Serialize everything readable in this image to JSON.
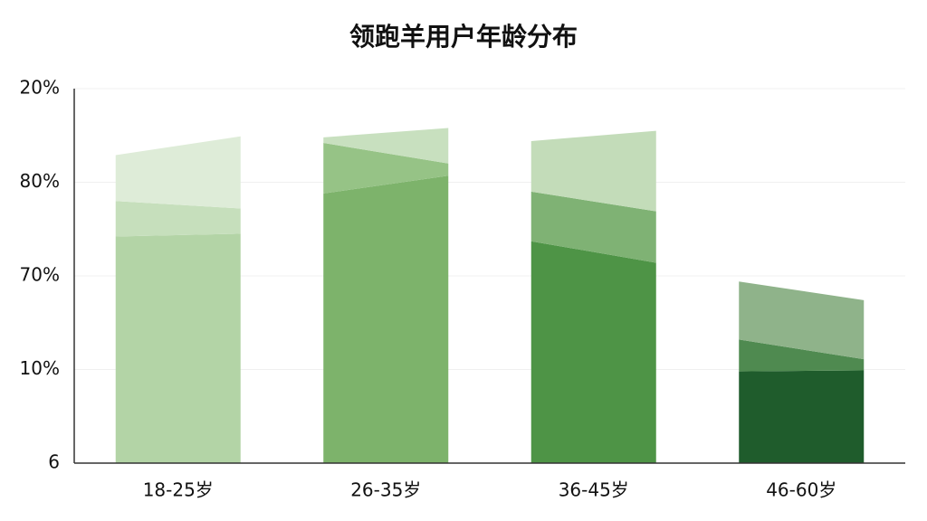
{
  "chart_data": {
    "type": "slanted-stacked-bar",
    "title": "领跑羊用户年龄分布",
    "categories": [
      "18-25岁",
      "26-35岁",
      "36-45岁",
      "46-60岁"
    ],
    "ylim": [
      0,
      4
    ],
    "yticks": [
      {
        "value": 0,
        "label": "6"
      },
      {
        "value": 1,
        "label": "10%"
      },
      {
        "value": 2,
        "label": "70%"
      },
      {
        "value": 3,
        "label": "80%"
      },
      {
        "value": 4,
        "label": "20%"
      }
    ],
    "grid": true,
    "series": [
      {
        "start": [
          2.42,
          2.88,
          2.37,
          0.98
        ],
        "end": [
          2.45,
          3.07,
          2.14,
          0.99
        ],
        "colors": [
          "#b3d4a6",
          "#7db36b",
          "#4e9446",
          "#1f5c2c"
        ]
      },
      {
        "start": [
          0.38,
          0.54,
          0.53,
          0.34
        ],
        "end": [
          0.27,
          0.13,
          0.55,
          0.12
        ],
        "colors": [
          "#c6dfbc",
          "#96c386",
          "#7fb274",
          "#4f8a50"
        ]
      },
      {
        "start": [
          0.49,
          0.06,
          0.54,
          0.62
        ],
        "end": [
          0.77,
          0.38,
          0.86,
          0.63
        ],
        "colors": [
          "#deecd8",
          "#c8e0bf",
          "#c3dcb9",
          "#8fb38a"
        ]
      }
    ]
  }
}
